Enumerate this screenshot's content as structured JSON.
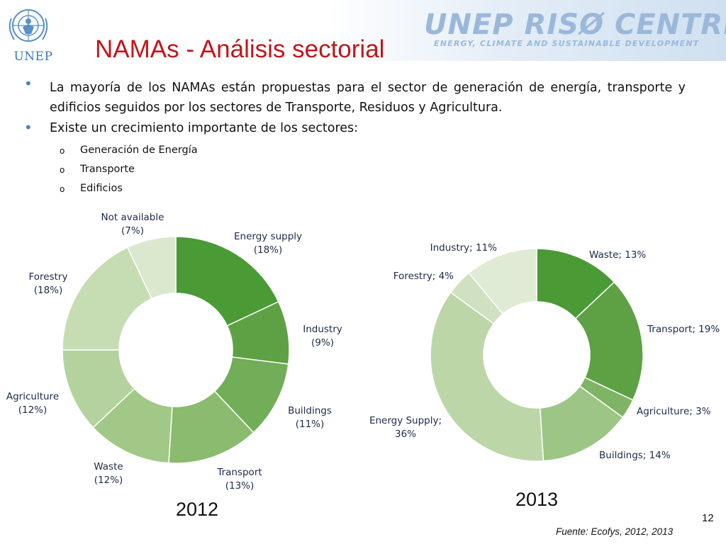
{
  "header": {
    "logo_left_text": "UNEP",
    "partner_logo_main": "UNEP RISØ CENTRE",
    "partner_logo_tagline": "ENERGY, CLIMATE AND SUSTAINABLE DEVELOPMENT"
  },
  "slide": {
    "title": "NAMAs - Análisis sectorial",
    "bullets": [
      "La mayoría de los NAMAs están propuestas para el sector de generación de energía, transporte y edificios  seguidos por los sectores de Transporte, Residuos y Agricultura.",
      "Existe un crecimiento importante de los sectores:"
    ],
    "sub_marker": "o",
    "sub_bullets": [
      "Generación de Energía",
      "Transporte",
      "Edificios"
    ],
    "page_number": "12",
    "source": "Fuente: Ecofys, 2012, 2013"
  },
  "chart_data": [
    {
      "type": "pie",
      "style": "donut",
      "title": "2012",
      "slices": [
        {
          "label": "Energy supply",
          "value_label": "(18%)",
          "value": 18,
          "color": "#4a9a36"
        },
        {
          "label": "Industry",
          "value_label": "(9%)",
          "value": 9,
          "color": "#5ea144"
        },
        {
          "label": "Buildings",
          "value_label": "(11%)",
          "value": 11,
          "color": "#72ad58"
        },
        {
          "label": "Transport",
          "value_label": "(13%)",
          "value": 13,
          "color": "#8abb6e"
        },
        {
          "label": "Waste",
          "value_label": "(12%)",
          "value": 12,
          "color": "#a1c887"
        },
        {
          "label": "Agriculture",
          "value_label": "(12%)",
          "value": 12,
          "color": "#b4d29d"
        },
        {
          "label": "Forestry",
          "value_label": "(18%)",
          "value": 18,
          "color": "#c6ddb3"
        },
        {
          "label": "Not available",
          "value_label": "(7%)",
          "value": 7,
          "color": "#dbe8cd"
        }
      ]
    },
    {
      "type": "pie",
      "style": "donut",
      "title": "2013",
      "slices": [
        {
          "label": "Waste; 13%",
          "value": 13,
          "color": "#4a9a36"
        },
        {
          "label": "Transport; 19%",
          "value": 19,
          "color": "#5ea144"
        },
        {
          "label": "Agriculture; 3%",
          "value": 3,
          "color": "#7eb463"
        },
        {
          "label": "Buildings; 14%",
          "value": 14,
          "color": "#9dc585"
        },
        {
          "label": "Energy Supply; 36%",
          "value": 36,
          "color": "#bcd6a8"
        },
        {
          "label": "Forestry; 4%",
          "value": 4,
          "color": "#cfe1c0"
        },
        {
          "label": "Industry; 11%",
          "value": 11,
          "color": "#e0ebd6"
        }
      ]
    }
  ]
}
